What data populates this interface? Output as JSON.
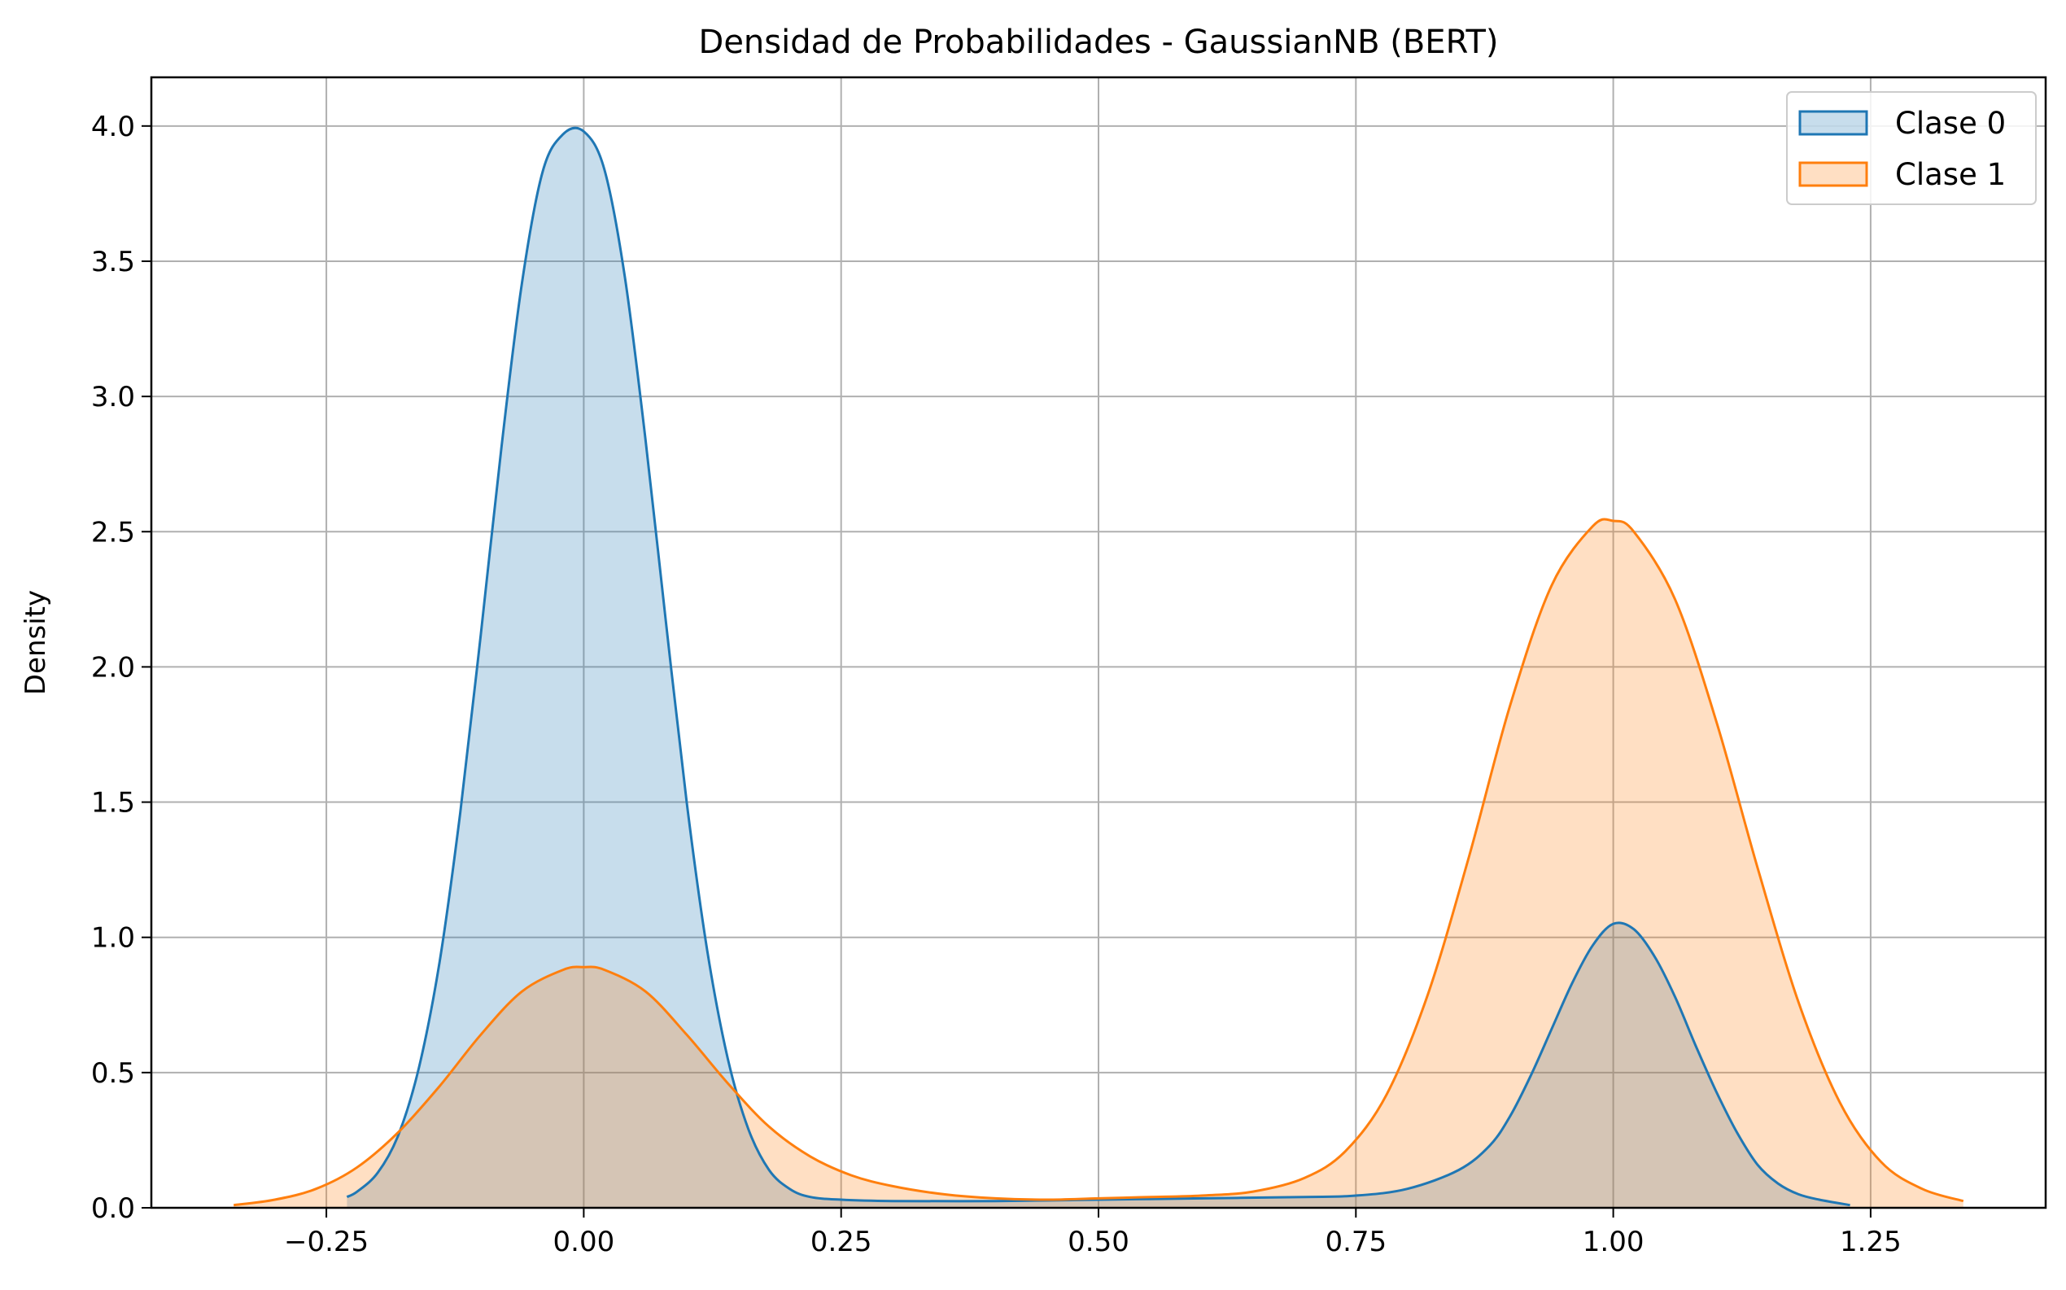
{
  "chart_data": {
    "type": "area",
    "title": "Densidad de Probabilidades - GaussianNB (BERT)",
    "xlabel": "",
    "ylabel": "Density",
    "xlim": [
      -0.42,
      1.42
    ],
    "ylim": [
      0,
      4.18
    ],
    "xticks": [
      -0.25,
      0.0,
      0.25,
      0.5,
      0.75,
      1.0,
      1.25
    ],
    "xtick_labels": [
      "−0.25",
      "0.00",
      "0.25",
      "0.50",
      "0.75",
      "1.00",
      "1.25"
    ],
    "yticks": [
      0.0,
      0.5,
      1.0,
      1.5,
      2.0,
      2.5,
      3.0,
      3.5,
      4.0
    ],
    "ytick_labels": [
      "0.0",
      "0.5",
      "1.0",
      "1.5",
      "2.0",
      "2.5",
      "3.0",
      "3.5",
      "4.0"
    ],
    "grid": true,
    "legend_position": "top-right",
    "series": [
      {
        "name": "Clase 0",
        "color": "#1f77b4",
        "x": [
          -0.23,
          -0.22,
          -0.2,
          -0.18,
          -0.16,
          -0.14,
          -0.12,
          -0.1,
          -0.08,
          -0.06,
          -0.04,
          -0.02,
          0.0,
          0.02,
          0.04,
          0.06,
          0.08,
          0.1,
          0.12,
          0.14,
          0.16,
          0.18,
          0.2,
          0.22,
          0.25,
          0.3,
          0.4,
          0.5,
          0.6,
          0.7,
          0.75,
          0.8,
          0.85,
          0.88,
          0.9,
          0.92,
          0.94,
          0.96,
          0.98,
          1.0,
          1.02,
          1.04,
          1.06,
          1.08,
          1.1,
          1.12,
          1.14,
          1.16,
          1.18,
          1.2,
          1.23
        ],
        "y": [
          0.04,
          0.06,
          0.13,
          0.27,
          0.52,
          0.91,
          1.46,
          2.12,
          2.81,
          3.42,
          3.83,
          3.97,
          3.98,
          3.84,
          3.44,
          2.84,
          2.16,
          1.5,
          0.95,
          0.55,
          0.29,
          0.14,
          0.07,
          0.04,
          0.03,
          0.025,
          0.025,
          0.03,
          0.035,
          0.04,
          0.045,
          0.07,
          0.14,
          0.23,
          0.34,
          0.49,
          0.66,
          0.83,
          0.97,
          1.05,
          1.03,
          0.93,
          0.78,
          0.6,
          0.43,
          0.28,
          0.16,
          0.09,
          0.05,
          0.03,
          0.01
        ]
      },
      {
        "name": "Clase 1",
        "color": "#ff7f0e",
        "x": [
          -0.34,
          -0.3,
          -0.26,
          -0.22,
          -0.18,
          -0.14,
          -0.1,
          -0.06,
          -0.02,
          0.0,
          0.02,
          0.06,
          0.1,
          0.14,
          0.18,
          0.22,
          0.26,
          0.3,
          0.35,
          0.4,
          0.45,
          0.5,
          0.55,
          0.6,
          0.65,
          0.7,
          0.74,
          0.78,
          0.82,
          0.86,
          0.9,
          0.94,
          0.98,
          1.0,
          1.02,
          1.06,
          1.1,
          1.14,
          1.18,
          1.22,
          1.26,
          1.3,
          1.34
        ],
        "y": [
          0.01,
          0.03,
          0.07,
          0.15,
          0.28,
          0.45,
          0.64,
          0.8,
          0.88,
          0.89,
          0.88,
          0.8,
          0.64,
          0.46,
          0.3,
          0.19,
          0.12,
          0.08,
          0.05,
          0.035,
          0.03,
          0.035,
          0.04,
          0.045,
          0.06,
          0.11,
          0.21,
          0.42,
          0.79,
          1.3,
          1.86,
          2.3,
          2.52,
          2.54,
          2.5,
          2.25,
          1.8,
          1.26,
          0.76,
          0.39,
          0.17,
          0.07,
          0.025
        ]
      }
    ]
  }
}
